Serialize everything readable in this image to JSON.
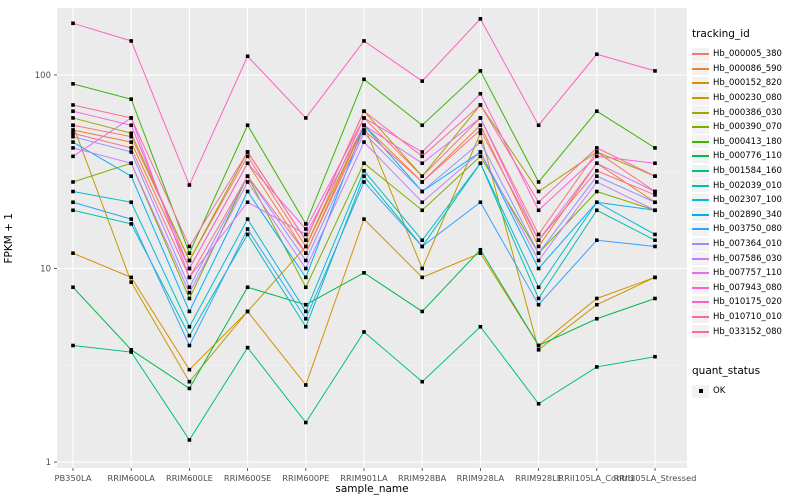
{
  "chart_data": {
    "type": "line",
    "title": "",
    "xlabel": "sample_name",
    "ylabel": "FPKM + 1",
    "y_scale": "log10",
    "ylim": [
      1,
      230
    ],
    "y_ticks": [
      1,
      10,
      100
    ],
    "grid": true,
    "legend_position": "right",
    "panel_background": "#EBEBEB",
    "point_color": "#000000",
    "categories": [
      "PB350LA",
      "RRIM600LA",
      "RRIM600LE",
      "RRIM600SE",
      "RRIM600PE",
      "RRIM901LA",
      "RRIM928BA",
      "RRIM928LA",
      "RRIM928LE",
      "RRII105LA_Control",
      "RRII105LA_Stressed"
    ],
    "series": [
      {
        "name": "Hb_000005_380",
        "color": "#F8766D",
        "values": [
          55,
          48,
          11,
          38,
          13,
          60,
          30,
          60,
          15,
          40,
          25
        ]
      },
      {
        "name": "Hb_000086_590",
        "color": "#EA8331",
        "values": [
          52,
          45,
          10,
          35,
          12,
          55,
          28,
          55,
          13,
          35,
          22
        ]
      },
      {
        "name": "Hb_000152_820",
        "color": "#D89000",
        "values": [
          12,
          9,
          3,
          6,
          2.5,
          18,
          9,
          12,
          4,
          7,
          9
        ]
      },
      {
        "name": "Hb_000230_080",
        "color": "#C09B00",
        "values": [
          55,
          8.5,
          2.6,
          6,
          13,
          55,
          10,
          50,
          3.8,
          6.5,
          9
        ]
      },
      {
        "name": "Hb_000386_030",
        "color": "#A3A500",
        "values": [
          60,
          50,
          11,
          40,
          14,
          65,
          30,
          70,
          25,
          40,
          30
        ]
      },
      {
        "name": "Hb_000390_070",
        "color": "#7CAE00",
        "values": [
          28,
          35,
          7,
          30,
          8,
          35,
          20,
          38,
          12,
          25,
          20
        ]
      },
      {
        "name": "Hb_000413_180",
        "color": "#39B600",
        "values": [
          90,
          75,
          12,
          55,
          17,
          95,
          55,
          105,
          28,
          65,
          42
        ]
      },
      {
        "name": "Hb_000776_110",
        "color": "#00BB4E",
        "values": [
          8,
          3.8,
          2.4,
          8,
          6.5,
          9.5,
          6,
          12.5,
          4,
          5.5,
          7
        ]
      },
      {
        "name": "Hb_001584_160",
        "color": "#00C087",
        "values": [
          4,
          3.7,
          1.3,
          3.9,
          1.6,
          4.7,
          2.6,
          5,
          2,
          3.1,
          3.5
        ]
      },
      {
        "name": "Hb_002039_010",
        "color": "#00C0B2",
        "values": [
          20,
          17,
          4.5,
          15,
          5,
          30,
          13,
          35,
          7,
          20,
          14
        ]
      },
      {
        "name": "Hb_002307_100",
        "color": "#00BCD8",
        "values": [
          25,
          22,
          5,
          18,
          6,
          32,
          14,
          35,
          8,
          22,
          15
        ]
      },
      {
        "name": "Hb_002890_340",
        "color": "#00B0F6",
        "values": [
          45,
          30,
          6,
          25,
          9,
          55,
          25,
          40,
          10,
          22,
          20
        ]
      },
      {
        "name": "Hb_003750_080",
        "color": "#35A2FF",
        "values": [
          22,
          18,
          4,
          16,
          5.5,
          28,
          13,
          22,
          6.5,
          14,
          13
        ]
      },
      {
        "name": "Hb_007364_010",
        "color": "#9590FF",
        "values": [
          48,
          40,
          8,
          30,
          11,
          50,
          25,
          45,
          12,
          30,
          22
        ]
      },
      {
        "name": "Hb_007586_030",
        "color": "#C77CFF",
        "values": [
          42,
          35,
          7.5,
          28,
          10,
          45,
          22,
          40,
          11,
          28,
          20
        ]
      },
      {
        "name": "Hb_007757_110",
        "color": "#E76BF3",
        "values": [
          38,
          60,
          9,
          22,
          15,
          55,
          35,
          60,
          14,
          35,
          25
        ]
      },
      {
        "name": "Hb_007943_080",
        "color": "#FA62DB",
        "values": [
          65,
          55,
          10,
          35,
          16,
          60,
          40,
          80,
          20,
          38,
          35
        ]
      },
      {
        "name": "Hb_010175_020",
        "color": "#FF61C3",
        "values": [
          185,
          150,
          27,
          125,
          60,
          150,
          93,
          195,
          55,
          128,
          105
        ]
      },
      {
        "name": "Hb_010710_010",
        "color": "#FF689E",
        "values": [
          70,
          60,
          13,
          40,
          14,
          65,
          38,
          70,
          22,
          42,
          30
        ]
      },
      {
        "name": "Hb_033152_080",
        "color": "#FF6C91",
        "values": [
          50,
          42,
          9,
          30,
          12,
          52,
          28,
          52,
          14,
          32,
          24
        ]
      }
    ],
    "legend": {
      "color_title": "tracking_id",
      "shape_title": "quant_status",
      "shape_entries": [
        {
          "label": "OK",
          "marker": "black-point"
        }
      ]
    }
  }
}
